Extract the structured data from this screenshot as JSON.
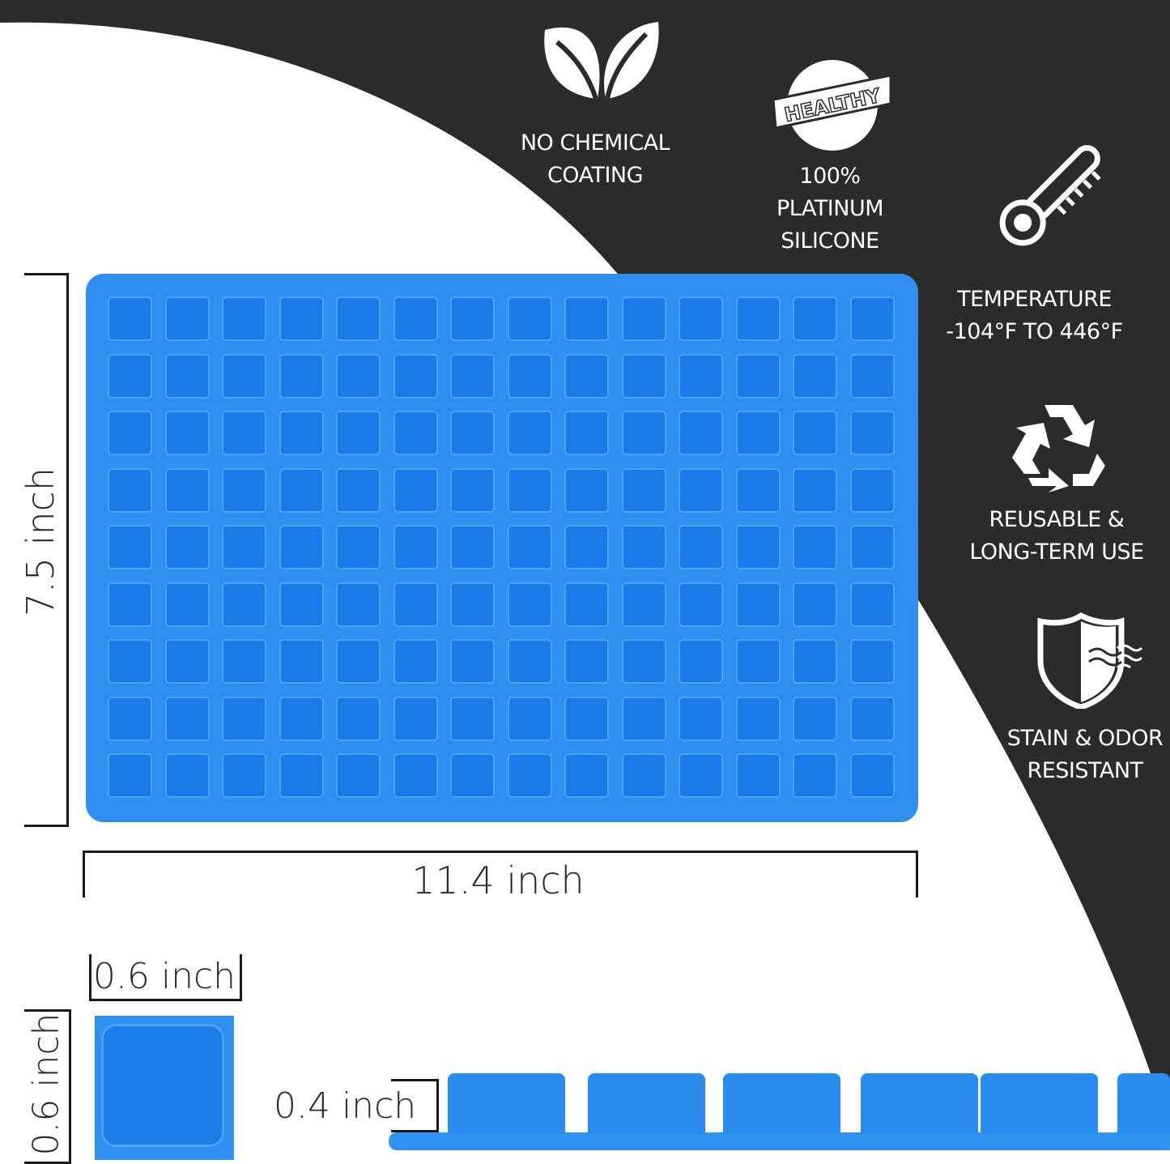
{
  "colors": {
    "dark": "#2b2b2b",
    "mold": "#2f8ff0",
    "cavity": "#1a7be8",
    "white": "#ffffff"
  },
  "features": [
    {
      "icon": "leaf-icon",
      "lines": [
        "NO CHEMICAL",
        "COATING"
      ]
    },
    {
      "icon": "healthy-badge-icon",
      "badge": "HEALTHY",
      "lines": [
        "100%",
        "PLATINUM",
        "SILICONE"
      ]
    },
    {
      "icon": "thermometer-icon",
      "lines": [
        "TEMPERATURE",
        "-104°F TO 446°F"
      ]
    },
    {
      "icon": "recycle-icon",
      "lines": [
        "REUSABLE &",
        "LONG-TERM USE"
      ]
    },
    {
      "icon": "shield-icon",
      "lines": [
        "STAIN & ODOR",
        "RESISTANT"
      ]
    }
  ],
  "mold": {
    "rows": 9,
    "cols": 14
  },
  "dimensions": {
    "height": "7.5 inch",
    "width": "11.4 inch",
    "cell_width": "0.6 inch",
    "cell_height": "0.6 inch",
    "depth": "0.4 inch"
  }
}
